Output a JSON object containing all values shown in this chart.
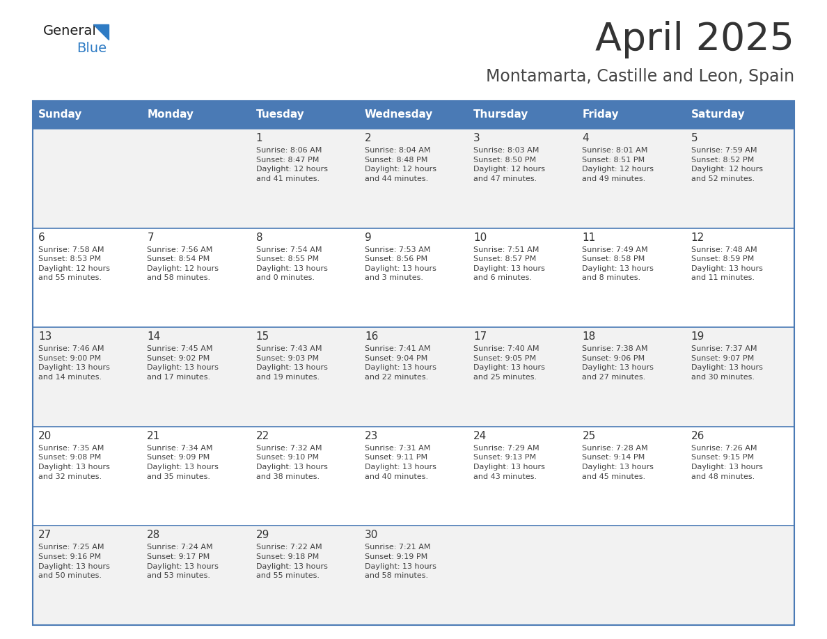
{
  "title": "April 2025",
  "subtitle": "Montamarta, Castille and Leon, Spain",
  "header_color": "#4a7ab5",
  "header_text_color": "#ffffff",
  "days_of_week": [
    "Sunday",
    "Monday",
    "Tuesday",
    "Wednesday",
    "Thursday",
    "Friday",
    "Saturday"
  ],
  "row_bg_even": "#f2f2f2",
  "row_bg_odd": "#ffffff",
  "divider_color": "#4a7ab5",
  "text_color": "#404040",
  "num_color": "#333333",
  "title_color": "#333333",
  "subtitle_color": "#444444",
  "logo_general_color": "#1a1a1a",
  "logo_blue_color": "#2e7bc4",
  "calendar": [
    [
      {
        "day": "",
        "info": ""
      },
      {
        "day": "",
        "info": ""
      },
      {
        "day": "1",
        "info": "Sunrise: 8:06 AM\nSunset: 8:47 PM\nDaylight: 12 hours\nand 41 minutes."
      },
      {
        "day": "2",
        "info": "Sunrise: 8:04 AM\nSunset: 8:48 PM\nDaylight: 12 hours\nand 44 minutes."
      },
      {
        "day": "3",
        "info": "Sunrise: 8:03 AM\nSunset: 8:50 PM\nDaylight: 12 hours\nand 47 minutes."
      },
      {
        "day": "4",
        "info": "Sunrise: 8:01 AM\nSunset: 8:51 PM\nDaylight: 12 hours\nand 49 minutes."
      },
      {
        "day": "5",
        "info": "Sunrise: 7:59 AM\nSunset: 8:52 PM\nDaylight: 12 hours\nand 52 minutes."
      }
    ],
    [
      {
        "day": "6",
        "info": "Sunrise: 7:58 AM\nSunset: 8:53 PM\nDaylight: 12 hours\nand 55 minutes."
      },
      {
        "day": "7",
        "info": "Sunrise: 7:56 AM\nSunset: 8:54 PM\nDaylight: 12 hours\nand 58 minutes."
      },
      {
        "day": "8",
        "info": "Sunrise: 7:54 AM\nSunset: 8:55 PM\nDaylight: 13 hours\nand 0 minutes."
      },
      {
        "day": "9",
        "info": "Sunrise: 7:53 AM\nSunset: 8:56 PM\nDaylight: 13 hours\nand 3 minutes."
      },
      {
        "day": "10",
        "info": "Sunrise: 7:51 AM\nSunset: 8:57 PM\nDaylight: 13 hours\nand 6 minutes."
      },
      {
        "day": "11",
        "info": "Sunrise: 7:49 AM\nSunset: 8:58 PM\nDaylight: 13 hours\nand 8 minutes."
      },
      {
        "day": "12",
        "info": "Sunrise: 7:48 AM\nSunset: 8:59 PM\nDaylight: 13 hours\nand 11 minutes."
      }
    ],
    [
      {
        "day": "13",
        "info": "Sunrise: 7:46 AM\nSunset: 9:00 PM\nDaylight: 13 hours\nand 14 minutes."
      },
      {
        "day": "14",
        "info": "Sunrise: 7:45 AM\nSunset: 9:02 PM\nDaylight: 13 hours\nand 17 minutes."
      },
      {
        "day": "15",
        "info": "Sunrise: 7:43 AM\nSunset: 9:03 PM\nDaylight: 13 hours\nand 19 minutes."
      },
      {
        "day": "16",
        "info": "Sunrise: 7:41 AM\nSunset: 9:04 PM\nDaylight: 13 hours\nand 22 minutes."
      },
      {
        "day": "17",
        "info": "Sunrise: 7:40 AM\nSunset: 9:05 PM\nDaylight: 13 hours\nand 25 minutes."
      },
      {
        "day": "18",
        "info": "Sunrise: 7:38 AM\nSunset: 9:06 PM\nDaylight: 13 hours\nand 27 minutes."
      },
      {
        "day": "19",
        "info": "Sunrise: 7:37 AM\nSunset: 9:07 PM\nDaylight: 13 hours\nand 30 minutes."
      }
    ],
    [
      {
        "day": "20",
        "info": "Sunrise: 7:35 AM\nSunset: 9:08 PM\nDaylight: 13 hours\nand 32 minutes."
      },
      {
        "day": "21",
        "info": "Sunrise: 7:34 AM\nSunset: 9:09 PM\nDaylight: 13 hours\nand 35 minutes."
      },
      {
        "day": "22",
        "info": "Sunrise: 7:32 AM\nSunset: 9:10 PM\nDaylight: 13 hours\nand 38 minutes."
      },
      {
        "day": "23",
        "info": "Sunrise: 7:31 AM\nSunset: 9:11 PM\nDaylight: 13 hours\nand 40 minutes."
      },
      {
        "day": "24",
        "info": "Sunrise: 7:29 AM\nSunset: 9:13 PM\nDaylight: 13 hours\nand 43 minutes."
      },
      {
        "day": "25",
        "info": "Sunrise: 7:28 AM\nSunset: 9:14 PM\nDaylight: 13 hours\nand 45 minutes."
      },
      {
        "day": "26",
        "info": "Sunrise: 7:26 AM\nSunset: 9:15 PM\nDaylight: 13 hours\nand 48 minutes."
      }
    ],
    [
      {
        "day": "27",
        "info": "Sunrise: 7:25 AM\nSunset: 9:16 PM\nDaylight: 13 hours\nand 50 minutes."
      },
      {
        "day": "28",
        "info": "Sunrise: 7:24 AM\nSunset: 9:17 PM\nDaylight: 13 hours\nand 53 minutes."
      },
      {
        "day": "29",
        "info": "Sunrise: 7:22 AM\nSunset: 9:18 PM\nDaylight: 13 hours\nand 55 minutes."
      },
      {
        "day": "30",
        "info": "Sunrise: 7:21 AM\nSunset: 9:19 PM\nDaylight: 13 hours\nand 58 minutes."
      },
      {
        "day": "",
        "info": ""
      },
      {
        "day": "",
        "info": ""
      },
      {
        "day": "",
        "info": ""
      }
    ]
  ]
}
